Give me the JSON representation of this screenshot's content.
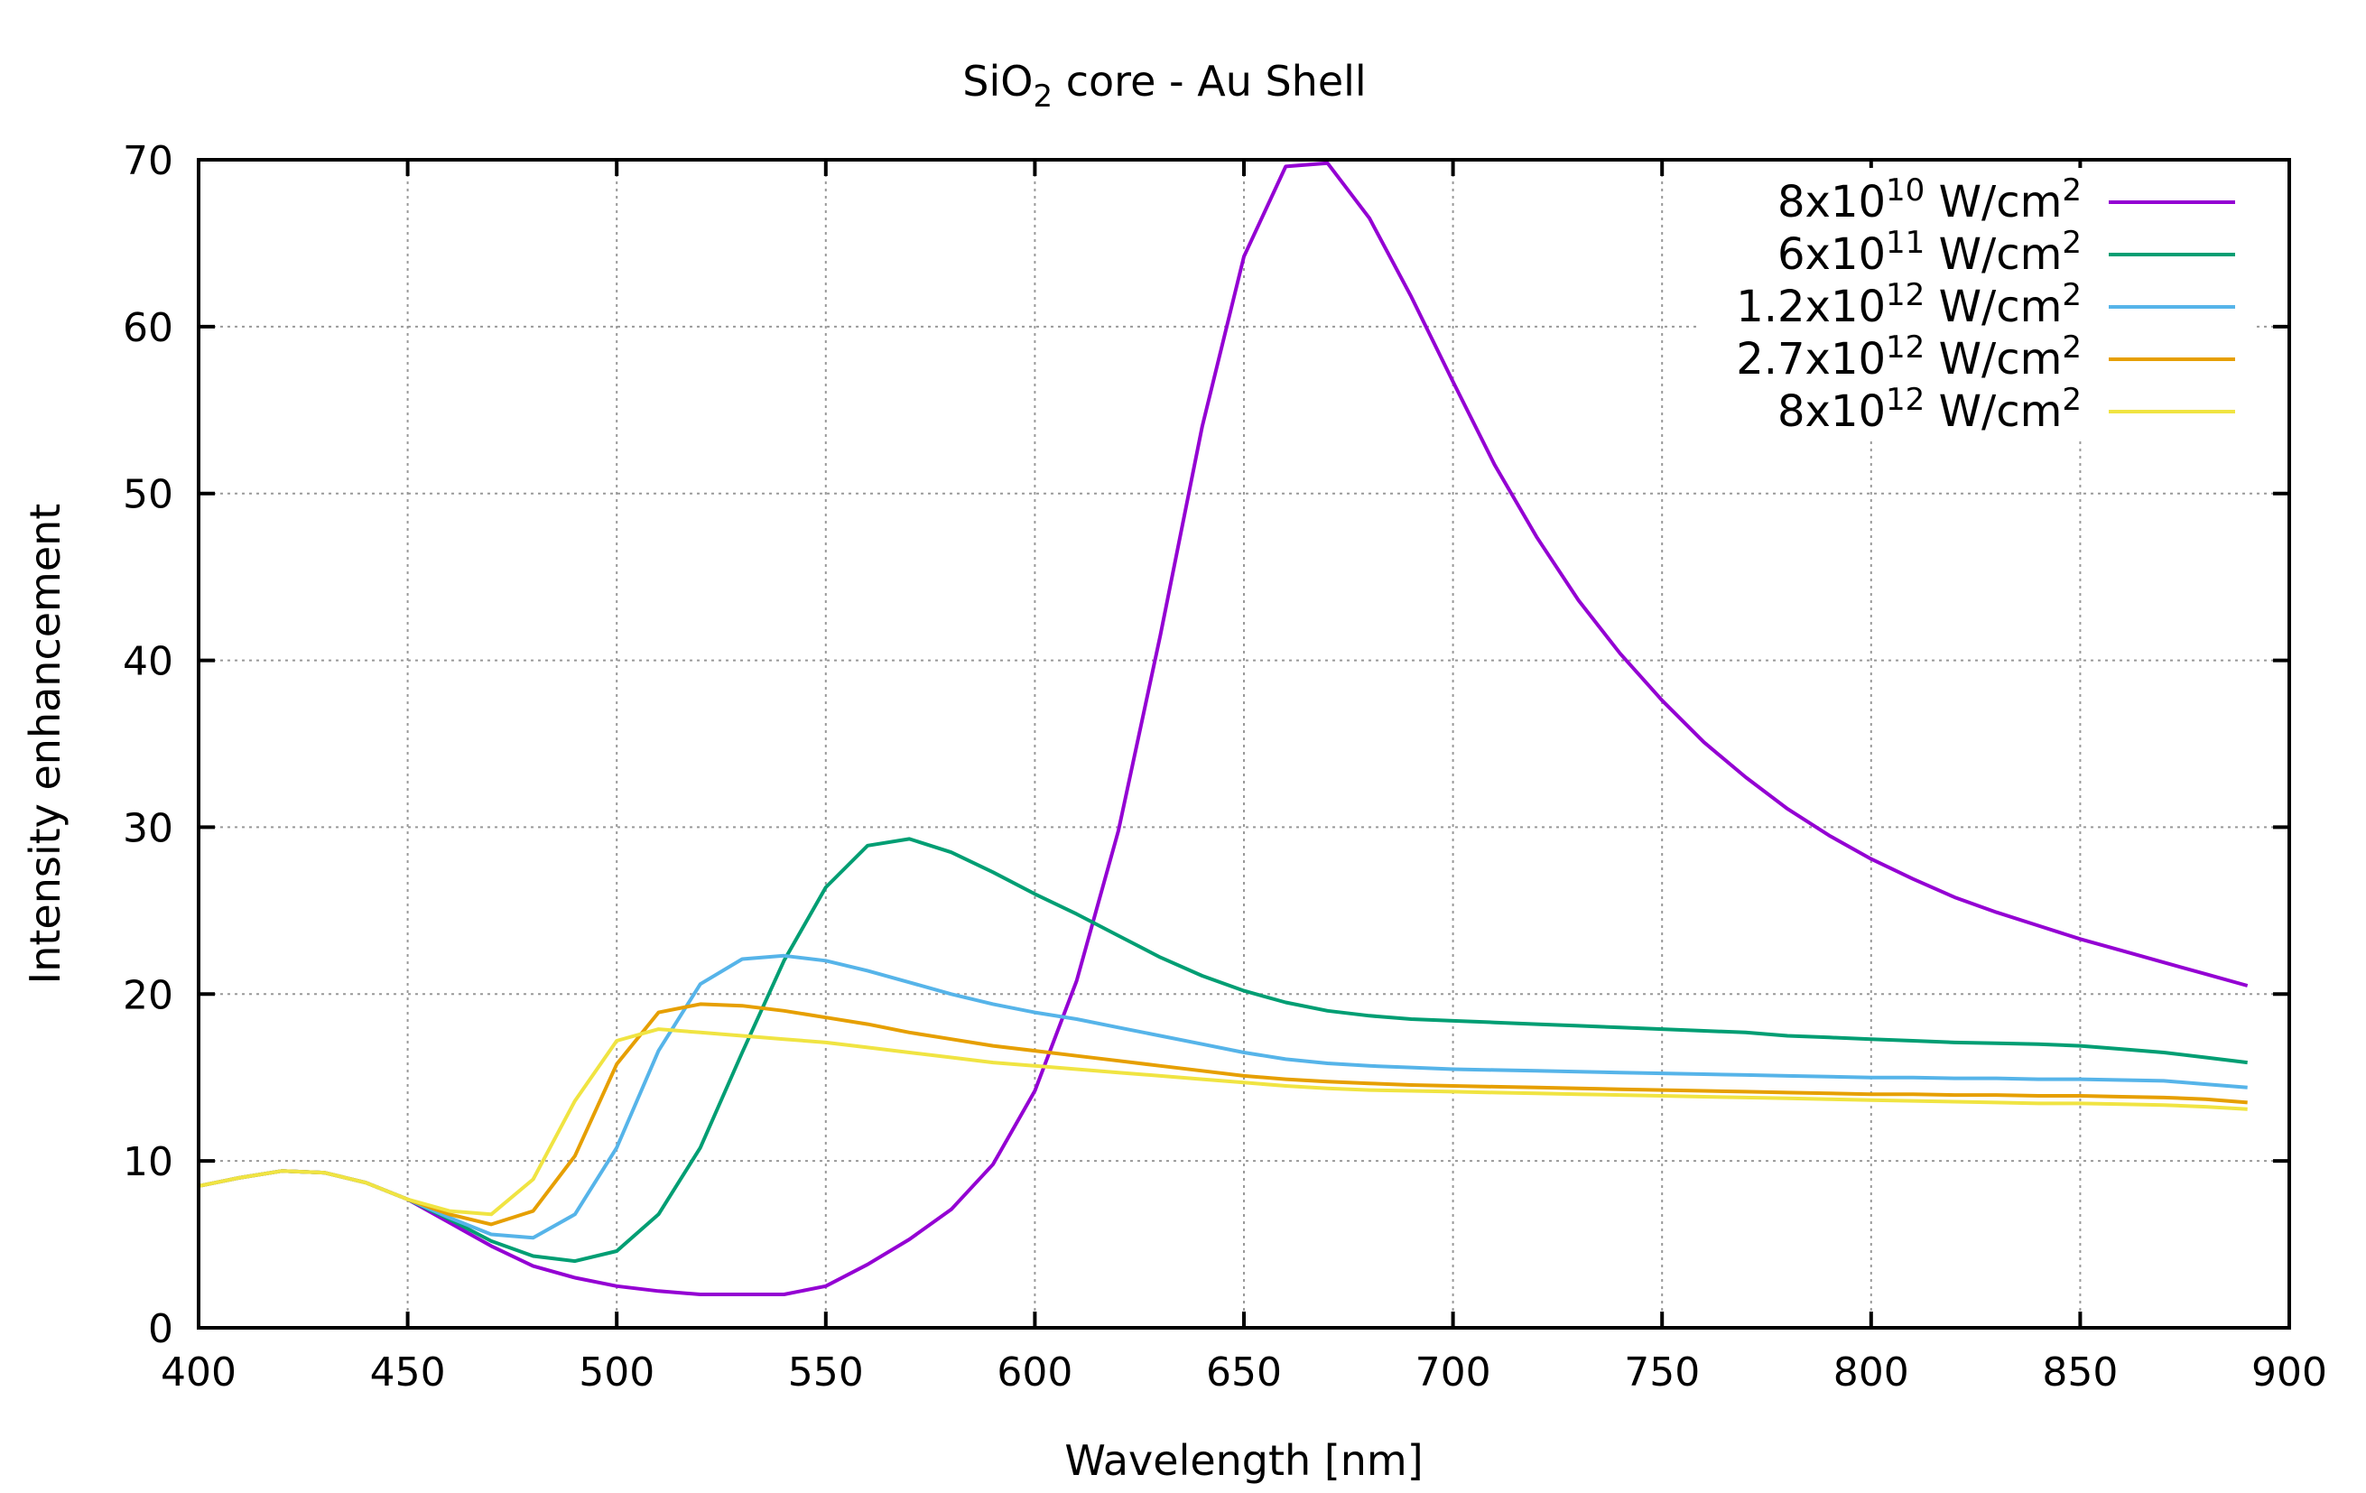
{
  "chart_data": {
    "type": "line",
    "title": {
      "prefix": "SiO",
      "sub": "2",
      "suffix": " core - Au Shell"
    },
    "xlabel": "Wavelength [nm]",
    "ylabel": "Intensity enhancement",
    "xlim": [
      400,
      900
    ],
    "ylim": [
      0,
      70
    ],
    "xticks": [
      400,
      450,
      500,
      550,
      600,
      650,
      700,
      750,
      800,
      850,
      900
    ],
    "yticks": [
      0,
      10,
      20,
      30,
      40,
      50,
      60,
      70
    ],
    "grid": true,
    "legend_position": "top-right",
    "x": [
      400,
      410,
      420,
      430,
      440,
      450,
      460,
      470,
      480,
      490,
      500,
      510,
      520,
      530,
      540,
      550,
      560,
      570,
      580,
      590,
      600,
      610,
      620,
      630,
      640,
      650,
      660,
      670,
      680,
      690,
      700,
      710,
      720,
      730,
      740,
      750,
      760,
      770,
      780,
      790,
      800,
      810,
      820,
      830,
      840,
      850,
      860,
      870,
      880,
      890
    ],
    "series": [
      {
        "name": {
          "base": "8x10",
          "exp": "10",
          "unit": " W/cm",
          "unit_exp": "2"
        },
        "color": "#9400d3",
        "values": [
          8.5,
          9.0,
          9.4,
          9.3,
          8.7,
          7.7,
          6.3,
          4.9,
          3.7,
          3.0,
          2.5,
          2.2,
          2.0,
          2.0,
          2.0,
          2.5,
          3.8,
          5.3,
          7.1,
          9.8,
          14.2,
          20.8,
          29.8,
          41.5,
          54.0,
          64.2,
          69.6,
          69.8,
          66.5,
          61.8,
          56.7,
          51.7,
          47.4,
          43.6,
          40.4,
          37.6,
          35.1,
          33.0,
          31.1,
          29.5,
          28.1,
          26.9,
          25.8,
          24.9,
          24.1,
          23.3,
          22.6,
          21.9,
          21.2,
          20.5
        ]
      },
      {
        "name": {
          "base": "6x10",
          "exp": "11",
          "unit": " W/cm",
          "unit_exp": "2"
        },
        "color": "#009e73",
        "values": [
          8.5,
          9.0,
          9.4,
          9.3,
          8.7,
          7.7,
          6.5,
          5.2,
          4.3,
          4.0,
          4.6,
          6.8,
          10.8,
          16.5,
          22.0,
          26.4,
          28.9,
          29.3,
          28.5,
          27.3,
          26.0,
          24.8,
          23.5,
          22.2,
          21.1,
          20.2,
          19.5,
          19.0,
          18.7,
          18.5,
          18.4,
          18.3,
          18.2,
          18.1,
          18.0,
          17.9,
          17.8,
          17.7,
          17.5,
          17.4,
          17.3,
          17.2,
          17.1,
          17.05,
          17.0,
          16.9,
          16.7,
          16.5,
          16.2,
          15.9
        ]
      },
      {
        "name": {
          "base": "1.2x10",
          "exp": "12",
          "unit": " W/cm",
          "unit_exp": "2"
        },
        "color": "#56b4e9",
        "values": [
          8.5,
          9.0,
          9.4,
          9.3,
          8.7,
          7.7,
          6.6,
          5.6,
          5.4,
          6.8,
          10.8,
          16.6,
          20.6,
          22.1,
          22.3,
          22.0,
          21.4,
          20.7,
          20.0,
          19.4,
          18.9,
          18.5,
          18.0,
          17.5,
          17.0,
          16.5,
          16.1,
          15.85,
          15.7,
          15.6,
          15.5,
          15.45,
          15.4,
          15.35,
          15.3,
          15.25,
          15.2,
          15.15,
          15.1,
          15.05,
          15.0,
          15.0,
          14.95,
          14.95,
          14.9,
          14.9,
          14.85,
          14.8,
          14.6,
          14.4
        ]
      },
      {
        "name": {
          "base": "2.7x10",
          "exp": "12",
          "unit": " W/cm",
          "unit_exp": "2"
        },
        "color": "#e69f00",
        "values": [
          8.5,
          9.0,
          9.4,
          9.3,
          8.7,
          7.7,
          6.8,
          6.2,
          7.0,
          10.3,
          15.8,
          18.9,
          19.4,
          19.3,
          19.0,
          18.6,
          18.2,
          17.7,
          17.3,
          16.9,
          16.6,
          16.3,
          16.0,
          15.7,
          15.4,
          15.1,
          14.9,
          14.75,
          14.65,
          14.55,
          14.5,
          14.45,
          14.4,
          14.35,
          14.3,
          14.25,
          14.2,
          14.15,
          14.1,
          14.05,
          14.0,
          14.0,
          13.95,
          13.95,
          13.9,
          13.9,
          13.85,
          13.8,
          13.7,
          13.5
        ]
      },
      {
        "name": {
          "base": "8x10",
          "exp": "12",
          "unit": " W/cm",
          "unit_exp": "2"
        },
        "color": "#f0e442",
        "values": [
          8.5,
          9.0,
          9.4,
          9.3,
          8.7,
          7.7,
          7.0,
          6.8,
          8.9,
          13.6,
          17.2,
          17.9,
          17.7,
          17.5,
          17.3,
          17.1,
          16.8,
          16.5,
          16.2,
          15.9,
          15.7,
          15.5,
          15.3,
          15.1,
          14.9,
          14.7,
          14.5,
          14.35,
          14.25,
          14.2,
          14.15,
          14.1,
          14.05,
          14.0,
          13.95,
          13.9,
          13.85,
          13.8,
          13.75,
          13.7,
          13.65,
          13.6,
          13.55,
          13.5,
          13.45,
          13.45,
          13.4,
          13.35,
          13.25,
          13.1
        ]
      }
    ]
  }
}
